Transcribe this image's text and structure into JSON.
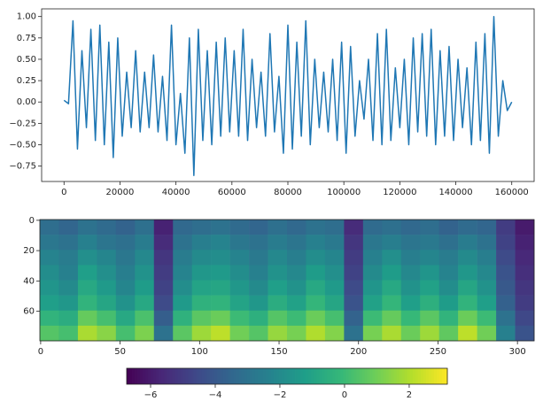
{
  "chart_data": [
    {
      "type": "line",
      "x": [
        0,
        1600,
        3200,
        4800,
        6400,
        8000,
        9600,
        11200,
        12800,
        14400,
        16000,
        17600,
        19200,
        20800,
        22400,
        24000,
        25600,
        27200,
        28800,
        30400,
        32000,
        33600,
        35200,
        36800,
        38400,
        40000,
        41600,
        43200,
        44800,
        46400,
        48000,
        49600,
        51200,
        52800,
        54400,
        56000,
        57600,
        59200,
        60800,
        62400,
        64000,
        65600,
        67200,
        68800,
        70400,
        72000,
        73600,
        75200,
        76800,
        78400,
        80000,
        81600,
        83200,
        84800,
        86400,
        88000,
        89600,
        91200,
        92800,
        94400,
        96000,
        97600,
        99200,
        100800,
        102400,
        104000,
        105600,
        107200,
        108800,
        110400,
        112000,
        113600,
        115200,
        116800,
        118400,
        120000,
        121600,
        123200,
        124800,
        126400,
        128000,
        129600,
        131200,
        132800,
        134400,
        136000,
        137600,
        139200,
        140800,
        142400,
        144000,
        145600,
        147200,
        148800,
        150400,
        152000,
        153600,
        155200,
        156800,
        158400,
        160000
      ],
      "values": [
        0.02,
        -0.02,
        0.95,
        -0.55,
        0.6,
        -0.3,
        0.85,
        -0.45,
        0.9,
        -0.5,
        0.7,
        -0.65,
        0.75,
        -0.4,
        0.35,
        -0.3,
        0.6,
        -0.35,
        0.35,
        -0.3,
        0.55,
        -0.35,
        0.3,
        -0.45,
        0.9,
        -0.5,
        0.1,
        -0.6,
        0.75,
        -0.86,
        0.85,
        -0.45,
        0.6,
        -0.5,
        0.7,
        -0.4,
        0.75,
        -0.35,
        0.6,
        -0.4,
        0.85,
        -0.45,
        0.5,
        -0.3,
        0.35,
        -0.4,
        0.8,
        -0.35,
        0.3,
        -0.6,
        0.9,
        -0.55,
        0.7,
        -0.4,
        0.95,
        -0.5,
        0.5,
        -0.3,
        0.35,
        -0.35,
        0.5,
        -0.45,
        0.7,
        -0.6,
        0.65,
        -0.4,
        0.25,
        -0.2,
        0.5,
        -0.45,
        0.8,
        -0.5,
        0.85,
        -0.45,
        0.4,
        -0.3,
        0.5,
        -0.5,
        0.75,
        -0.35,
        0.8,
        -0.4,
        0.85,
        -0.5,
        0.6,
        -0.4,
        0.65,
        -0.45,
        0.5,
        -0.3,
        0.4,
        -0.5,
        0.7,
        -0.45,
        0.8,
        -0.6,
        1.0,
        -0.4,
        0.25,
        -0.1,
        0.0
      ],
      "color": "#1f77b4",
      "xlim": [
        -8000,
        168000
      ],
      "xticks": [
        0,
        20000,
        40000,
        60000,
        80000,
        100000,
        120000,
        140000,
        160000
      ],
      "ylim": [
        -0.93,
        1.09
      ],
      "yticks": [
        {
          "value": -0.75,
          "label": "−0.75"
        },
        {
          "value": -0.5,
          "label": "−0.50"
        },
        {
          "value": -0.25,
          "label": "−0.25"
        },
        {
          "value": 0,
          "label": "0.00"
        },
        {
          "value": 0.25,
          "label": "0.25"
        },
        {
          "value": 0.5,
          "label": "0.50"
        },
        {
          "value": 0.75,
          "label": "0.75"
        },
        {
          "value": 1,
          "label": "1.00"
        }
      ]
    },
    {
      "type": "heatmap",
      "colormap": "viridis",
      "z": [
        [
          -3.2,
          -3.5,
          -3.0,
          -3.3,
          -3.6,
          -3.1,
          -5.8,
          -3.4,
          -3.2,
          -3.0,
          -3.3,
          -3.5,
          -3.1,
          -3.4,
          -3.0,
          -3.2,
          -5.5,
          -3.3,
          -3.1,
          -3.4,
          -3.2,
          -3.6,
          -3.3,
          -3.5,
          -5.0,
          -6.0
        ],
        [
          -2.8,
          -3.0,
          -2.4,
          -2.9,
          -3.1,
          -2.6,
          -5.5,
          -3.0,
          -2.5,
          -2.3,
          -2.8,
          -3.0,
          -2.6,
          -2.9,
          -2.4,
          -2.7,
          -5.2,
          -2.8,
          -2.5,
          -2.9,
          -2.7,
          -3.1,
          -2.6,
          -3.0,
          -4.8,
          -5.8
        ],
        [
          -2.3,
          -2.6,
          -1.8,
          -2.2,
          -2.8,
          -2.1,
          -5.2,
          -2.6,
          -2.0,
          -1.9,
          -2.3,
          -2.7,
          -2.1,
          -2.5,
          -1.9,
          -2.2,
          -5.0,
          -2.4,
          -1.8,
          -2.5,
          -2.2,
          -2.6,
          -2.0,
          -2.5,
          -4.5,
          -5.6
        ],
        [
          -1.9,
          -2.4,
          -1.2,
          -1.8,
          -2.5,
          -1.7,
          -5.0,
          -2.3,
          -1.5,
          -1.4,
          -1.9,
          -2.4,
          -1.7,
          -2.1,
          -1.3,
          -1.8,
          -4.8,
          -2.0,
          -1.3,
          -2.1,
          -1.6,
          -2.3,
          -1.5,
          -2.1,
          -4.2,
          -5.4
        ],
        [
          -1.6,
          -2.0,
          -0.8,
          -1.4,
          -2.2,
          -1.3,
          -4.8,
          -1.9,
          -1.0,
          -0.9,
          -1.5,
          -2.0,
          -1.2,
          -1.7,
          -0.8,
          -1.4,
          -4.5,
          -1.6,
          -0.8,
          -1.7,
          -1.1,
          -1.9,
          -0.9,
          -1.7,
          -4.0,
          -5.2
        ],
        [
          -1.2,
          -1.5,
          -0.3,
          -0.9,
          -1.7,
          -0.8,
          -4.5,
          -1.4,
          -0.4,
          -0.3,
          -1.0,
          -1.5,
          -0.6,
          -1.1,
          -0.2,
          -0.9,
          -4.2,
          -1.1,
          -0.2,
          -1.2,
          -0.5,
          -1.3,
          -0.3,
          -1.2,
          -3.7,
          -5.0
        ],
        [
          -0.3,
          -0.6,
          0.8,
          0.2,
          -0.8,
          0.3,
          -3.8,
          -0.4,
          0.6,
          0.9,
          0.0,
          -0.5,
          0.5,
          0.0,
          0.9,
          0.2,
          -3.6,
          0.0,
          0.8,
          -0.1,
          0.6,
          -0.3,
          0.9,
          0.0,
          -3.0,
          -4.6
        ],
        [
          0.5,
          0.2,
          1.9,
          1.4,
          0.2,
          1.2,
          -3.0,
          0.6,
          1.7,
          2.2,
          1.0,
          0.5,
          1.6,
          1.1,
          2.0,
          1.3,
          -3.0,
          1.1,
          1.9,
          0.9,
          1.7,
          0.7,
          2.2,
          1.0,
          -2.4,
          -4.2
        ]
      ],
      "xlim": [
        -0.5,
        310.5
      ],
      "xticks": [
        0,
        50,
        100,
        150,
        200,
        250,
        300
      ],
      "ylim": [
        79.5,
        -0.5
      ],
      "yticks": [
        0,
        20,
        40,
        60
      ],
      "colorbar": {
        "xlim": [
          -6.74,
          3.18
        ],
        "xticks": [
          {
            "value": -6,
            "label": "−6"
          },
          {
            "value": -4,
            "label": "−4"
          },
          {
            "value": -2,
            "label": "−2"
          },
          0,
          2
        ]
      }
    }
  ]
}
